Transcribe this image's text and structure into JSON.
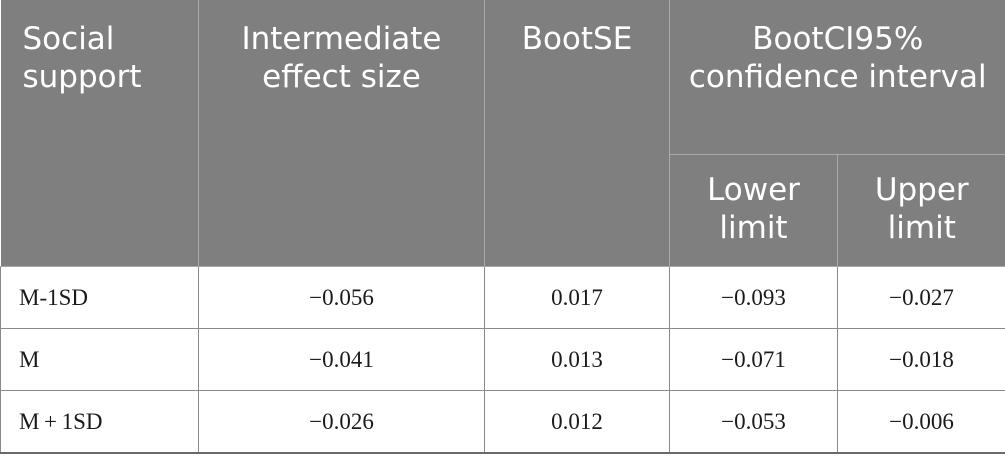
{
  "table": {
    "headers": {
      "social_support": "Social support",
      "intermediate_effect_size": "Intermediate effect size",
      "bootse": "BootSE",
      "bootci": "BootCI95% confidence interval",
      "lower_limit": "Lower limit",
      "upper_limit": "Upper limit"
    },
    "rows": [
      {
        "label": "M-1SD",
        "effect": "−0.056",
        "se": "0.017",
        "lower": "−0.093",
        "upper": "−0.027"
      },
      {
        "label": "M",
        "effect": "−0.041",
        "se": "0.013",
        "lower": "−0.071",
        "upper": "−0.018"
      },
      {
        "label": "M + 1SD",
        "effect": "−0.026",
        "se": "0.012",
        "lower": "−0.053",
        "upper": "−0.006"
      }
    ]
  }
}
